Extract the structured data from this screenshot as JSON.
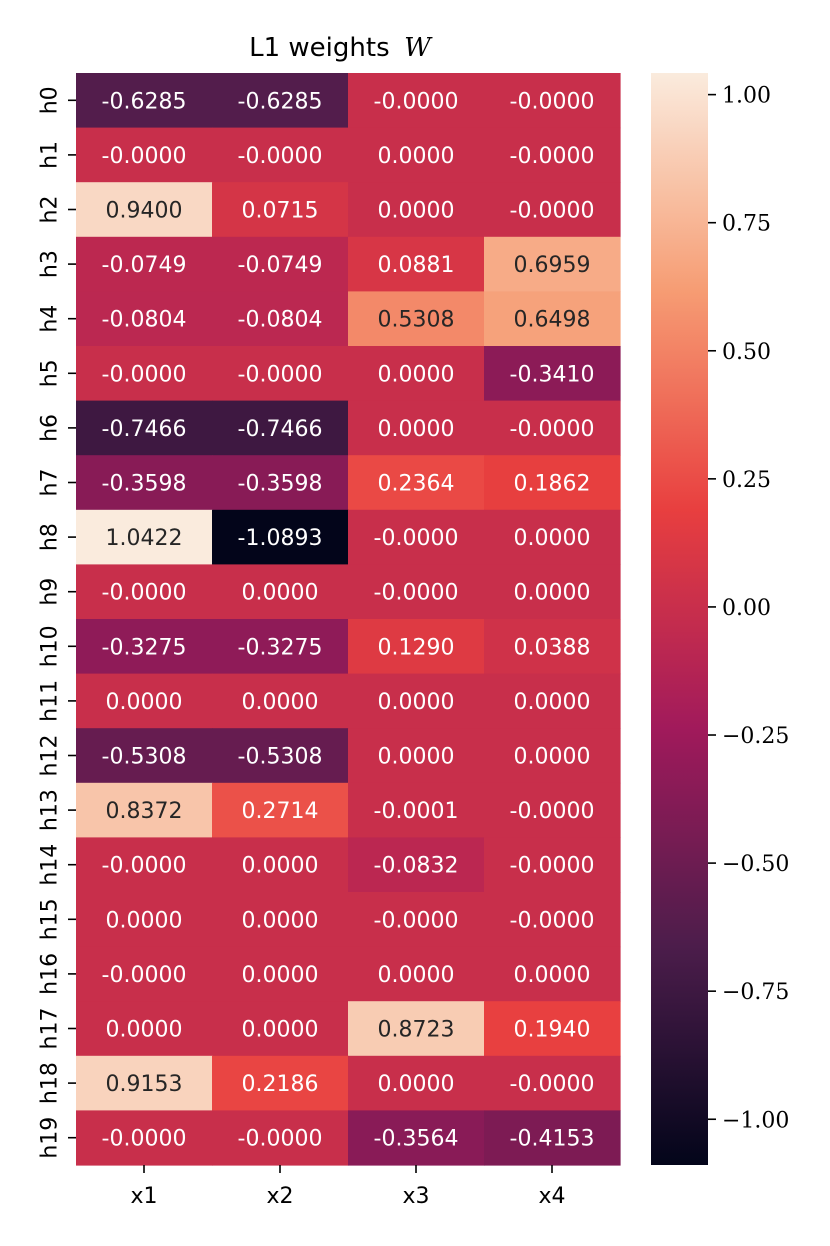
{
  "chart_data": {
    "type": "heatmap",
    "title": "L1 weights",
    "title_symbol": "W",
    "x_labels": [
      "x1",
      "x2",
      "x3",
      "x4"
    ],
    "y_labels": [
      "h0",
      "h1",
      "h2",
      "h3",
      "h4",
      "h5",
      "h6",
      "h7",
      "h8",
      "h9",
      "h10",
      "h11",
      "h12",
      "h13",
      "h14",
      "h15",
      "h16",
      "h17",
      "h18",
      "h19"
    ],
    "values": [
      [
        -0.6285,
        -0.6285,
        -0.0,
        -0.0
      ],
      [
        -0.0,
        -0.0,
        0.0,
        -0.0
      ],
      [
        0.94,
        0.0715,
        0.0,
        -0.0
      ],
      [
        -0.0749,
        -0.0749,
        0.0881,
        0.6959
      ],
      [
        -0.0804,
        -0.0804,
        0.5308,
        0.6498
      ],
      [
        -0.0,
        -0.0,
        0.0,
        -0.341
      ],
      [
        -0.7466,
        -0.7466,
        0.0,
        -0.0
      ],
      [
        -0.3598,
        -0.3598,
        0.2364,
        0.1862
      ],
      [
        1.0422,
        -1.0893,
        -0.0,
        0.0
      ],
      [
        -0.0,
        0.0,
        -0.0,
        0.0
      ],
      [
        -0.3275,
        -0.3275,
        0.129,
        0.0388
      ],
      [
        0.0,
        0.0,
        0.0,
        0.0
      ],
      [
        -0.5308,
        -0.5308,
        0.0,
        0.0
      ],
      [
        0.8372,
        0.2714,
        -0.0001,
        -0.0
      ],
      [
        -0.0,
        0.0,
        -0.0832,
        -0.0
      ],
      [
        0.0,
        0.0,
        -0.0,
        -0.0
      ],
      [
        -0.0,
        0.0,
        0.0,
        0.0
      ],
      [
        0.0,
        0.0,
        0.8723,
        0.194
      ],
      [
        0.9153,
        0.2186,
        0.0,
        -0.0
      ],
      [
        -0.0,
        -0.0,
        -0.3564,
        -0.4153
      ]
    ],
    "labels": [
      [
        "-0.6285",
        "-0.6285",
        "-0.0000",
        "-0.0000"
      ],
      [
        "-0.0000",
        "-0.0000",
        "0.0000",
        "-0.0000"
      ],
      [
        "0.9400",
        "0.0715",
        "0.0000",
        "-0.0000"
      ],
      [
        "-0.0749",
        "-0.0749",
        "0.0881",
        "0.6959"
      ],
      [
        "-0.0804",
        "-0.0804",
        "0.5308",
        "0.6498"
      ],
      [
        "-0.0000",
        "-0.0000",
        "0.0000",
        "-0.3410"
      ],
      [
        "-0.7466",
        "-0.7466",
        "0.0000",
        "-0.0000"
      ],
      [
        "-0.3598",
        "-0.3598",
        "0.2364",
        "0.1862"
      ],
      [
        "1.0422",
        "-1.0893",
        "-0.0000",
        "0.0000"
      ],
      [
        "-0.0000",
        "0.0000",
        "-0.0000",
        "0.0000"
      ],
      [
        "-0.3275",
        "-0.3275",
        "0.1290",
        "0.0388"
      ],
      [
        "0.0000",
        "0.0000",
        "0.0000",
        "0.0000"
      ],
      [
        "-0.5308",
        "-0.5308",
        "0.0000",
        "0.0000"
      ],
      [
        "0.8372",
        "0.2714",
        "-0.0001",
        "-0.0000"
      ],
      [
        "-0.0000",
        "0.0000",
        "-0.0832",
        "-0.0000"
      ],
      [
        "0.0000",
        "0.0000",
        "-0.0000",
        "-0.0000"
      ],
      [
        "-0.0000",
        "0.0000",
        "0.0000",
        "0.0000"
      ],
      [
        "0.0000",
        "0.0000",
        "0.8723",
        "0.1940"
      ],
      [
        "0.9153",
        "0.2186",
        "0.0000",
        "-0.0000"
      ],
      [
        "-0.0000",
        "-0.0000",
        "-0.3564",
        "-0.4153"
      ]
    ],
    "colorbar": {
      "vmin": -1.0893,
      "vmax": 1.0422,
      "ticks": [
        1.0,
        0.75,
        0.5,
        0.25,
        0.0,
        -0.25,
        -0.5,
        -0.75,
        -1.0
      ],
      "tick_labels": [
        "1.00",
        "0.75",
        "0.50",
        "0.25",
        "0.00",
        "−0.25",
        "−0.50",
        "−0.75",
        "−1.00"
      ]
    },
    "colormap": {
      "name": "rocket",
      "stops": [
        "#03051a",
        "#4c1d4b",
        "#a11a5b",
        "#e83f3f",
        "#f69c73",
        "#faebdd"
      ]
    },
    "text_colors": {
      "on_dark": "#ffffff",
      "on_light": "#262626"
    }
  }
}
